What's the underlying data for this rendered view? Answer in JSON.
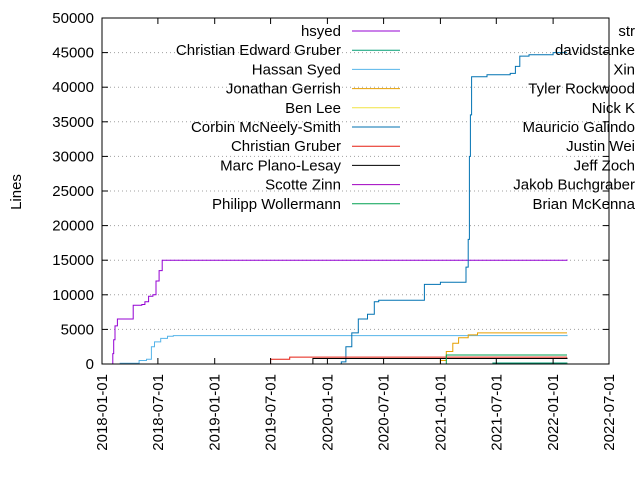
{
  "chart_data": {
    "type": "line",
    "title": "",
    "xlabel": "",
    "ylabel": "Lines",
    "ylim": [
      0,
      50000
    ],
    "xlim": [
      "2018-01-01",
      "2022-07-01"
    ],
    "yticks": [
      0,
      5000,
      10000,
      15000,
      20000,
      25000,
      30000,
      35000,
      40000,
      45000,
      50000
    ],
    "xticks": [
      "2018-01-01",
      "2018-07-01",
      "2019-01-01",
      "2019-07-01",
      "2020-01-01",
      "2020-07-01",
      "2021-01-01",
      "2021-07-01",
      "2022-01-01",
      "2022-07-01"
    ],
    "grid": "horizontal dotted, y >= 20000",
    "legend_placement": "top, two columns",
    "legend_left": [
      "hsyed",
      "Christian Edward Gruber",
      "Hassan Syed",
      "Jonathan Gerrish",
      "Ben Lee",
      "Corbin McNeely-Smith",
      "Christian Gruber",
      "Marc Plano-Lesay",
      "Scotte Zinn",
      "Philipp Wollermann"
    ],
    "legend_right": [
      "str",
      "davidstanke",
      "Xin",
      "Tyler Rockwood",
      "Nick K",
      "Mauricio Galindo",
      "Justin Wei",
      "Jeff Zoch",
      "Jakob Buchgraber",
      "Brian McKenna"
    ],
    "series": [
      {
        "name": "hsyed",
        "color": "#9400d3",
        "points": [
          [
            "2018-02-01",
            0
          ],
          [
            "2018-02-05",
            1500
          ],
          [
            "2018-02-08",
            3500
          ],
          [
            "2018-02-12",
            5500
          ],
          [
            "2018-02-20",
            6500
          ],
          [
            "2018-04-10",
            6500
          ],
          [
            "2018-04-12",
            8500
          ],
          [
            "2018-05-10",
            8600
          ],
          [
            "2018-05-20",
            9000
          ],
          [
            "2018-06-01",
            9800
          ],
          [
            "2018-06-15",
            10000
          ],
          [
            "2018-06-25",
            12000
          ],
          [
            "2018-07-05",
            13500
          ],
          [
            "2018-07-15",
            15000
          ],
          [
            "2022-02-15",
            15100
          ]
        ]
      },
      {
        "name": "Christian Edward Gruber",
        "color": "#009e73",
        "points": [
          [
            "2019-06-01",
            0
          ],
          [
            "2021-06-10",
            0
          ],
          [
            "2021-06-20",
            150
          ],
          [
            "2022-02-15",
            200
          ]
        ]
      },
      {
        "name": "Hassan Syed",
        "color": "#56b4e9",
        "points": [
          [
            "2018-01-15",
            0
          ],
          [
            "2018-03-01",
            100
          ],
          [
            "2018-05-01",
            500
          ],
          [
            "2018-05-25",
            700
          ],
          [
            "2018-06-10",
            2500
          ],
          [
            "2018-06-20",
            3200
          ],
          [
            "2018-07-10",
            3700
          ],
          [
            "2018-08-01",
            4000
          ],
          [
            "2018-08-20",
            4100
          ],
          [
            "2022-02-15",
            4200
          ]
        ]
      },
      {
        "name": "Jonathan Gerrish",
        "color": "#e69f00",
        "points": [
          [
            "2020-12-01",
            0
          ],
          [
            "2021-01-01",
            500
          ],
          [
            "2021-01-20",
            1800
          ],
          [
            "2021-02-10",
            3000
          ],
          [
            "2021-03-01",
            3800
          ],
          [
            "2021-04-01",
            4200
          ],
          [
            "2021-05-01",
            4500
          ],
          [
            "2022-02-15",
            4500
          ]
        ]
      },
      {
        "name": "Ben Lee",
        "color": "#f0e442",
        "points": [
          [
            "2020-01-01",
            0
          ],
          [
            "2022-02-15",
            80
          ]
        ]
      },
      {
        "name": "Corbin McNeely-Smith",
        "color": "#0072b2",
        "points": [
          [
            "2020-01-01",
            0
          ],
          [
            "2020-02-15",
            300
          ],
          [
            "2020-03-01",
            2500
          ],
          [
            "2020-03-20",
            4500
          ],
          [
            "2020-04-10",
            6500
          ],
          [
            "2020-05-10",
            7200
          ],
          [
            "2020-06-01",
            9000
          ],
          [
            "2020-06-15",
            9200
          ],
          [
            "2020-11-01",
            9200
          ],
          [
            "2020-11-10",
            11500
          ],
          [
            "2021-01-01",
            11800
          ],
          [
            "2021-03-15",
            11800
          ],
          [
            "2021-03-25",
            14000
          ],
          [
            "2021-04-01",
            18000
          ],
          [
            "2021-04-05",
            30000
          ],
          [
            "2021-04-08",
            36000
          ],
          [
            "2021-04-12",
            41500
          ],
          [
            "2021-06-01",
            41800
          ],
          [
            "2021-08-15",
            42000
          ],
          [
            "2021-09-01",
            43000
          ],
          [
            "2021-09-15",
            44500
          ],
          [
            "2021-10-15",
            44700
          ],
          [
            "2022-01-01",
            45000
          ],
          [
            "2022-02-15",
            45000
          ]
        ]
      },
      {
        "name": "Christian Gruber",
        "color": "#e51e10",
        "points": [
          [
            "2019-06-01",
            0
          ],
          [
            "2019-07-01",
            700
          ],
          [
            "2019-09-01",
            1000
          ],
          [
            "2022-02-15",
            1000
          ]
        ]
      },
      {
        "name": "Marc Plano-Lesay",
        "color": "#000000",
        "points": [
          [
            "2019-11-01",
            0
          ],
          [
            "2019-11-15",
            800
          ],
          [
            "2022-02-15",
            900
          ]
        ]
      },
      {
        "name": "Scotte Zinn",
        "color": "#a000c0",
        "points": [
          [
            "2020-01-15",
            0
          ],
          [
            "2022-02-15",
            50
          ]
        ]
      },
      {
        "name": "Philipp Wollermann",
        "color": "#00a050",
        "points": [
          [
            "2021-01-15",
            0
          ],
          [
            "2021-01-20",
            1300
          ],
          [
            "2022-02-15",
            1300
          ]
        ]
      }
    ]
  }
}
